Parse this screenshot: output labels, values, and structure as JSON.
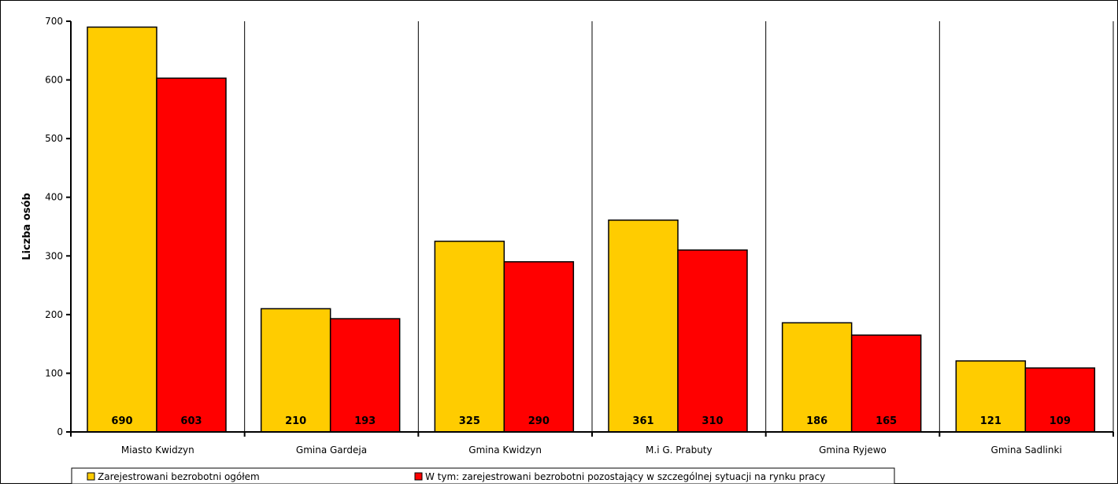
{
  "chart_data": {
    "type": "bar",
    "title": "",
    "xlabel": "",
    "ylabel": "Liczba osób",
    "ylim": [
      0,
      700
    ],
    "yticks": [
      0,
      100,
      200,
      300,
      400,
      500,
      600,
      700
    ],
    "grid": "vertical separators between categories",
    "legend_position": "bottom",
    "categories": [
      "Miasto Kwidzyn",
      "Gmina Gardeja",
      "Gmina Kwidzyn",
      "M.i G. Prabuty",
      "Gmina Ryjewo",
      "Gmina Sadlinki"
    ],
    "series": [
      {
        "name": "Zarejestrowani bezrobotni ogółem",
        "color": "#FFCC00",
        "values": [
          690,
          210,
          325,
          361,
          186,
          121
        ]
      },
      {
        "name": "W tym: zarejestrowani bezrobotni pozostający w szczególnej sytuacji na rynku pracy",
        "color": "#FF0000",
        "values": [
          603,
          193,
          290,
          310,
          165,
          109
        ]
      }
    ]
  }
}
